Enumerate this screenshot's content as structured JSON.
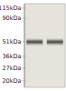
{
  "chart_data": {
    "type": "blot",
    "categories": [
      null,
      null
    ],
    "values": [
      51,
      51
    ],
    "half_heights": [
      4.5,
      4.5
    ],
    "color": "#3c3830",
    "log": "y",
    "ylim": [
      17,
      128
    ],
    "yticks": [
      {
        "value": 115,
        "label": "115kDa"
      },
      {
        "value": 90,
        "label": "90kDa"
      },
      {
        "value": 51,
        "label": "51kDa"
      },
      {
        "value": 36,
        "label": "36kDa"
      },
      {
        "value": 27,
        "label": "27kDa"
      },
      {
        "value": 20,
        "label": "20kDa"
      }
    ],
    "tick_labels": "y"
  }
}
